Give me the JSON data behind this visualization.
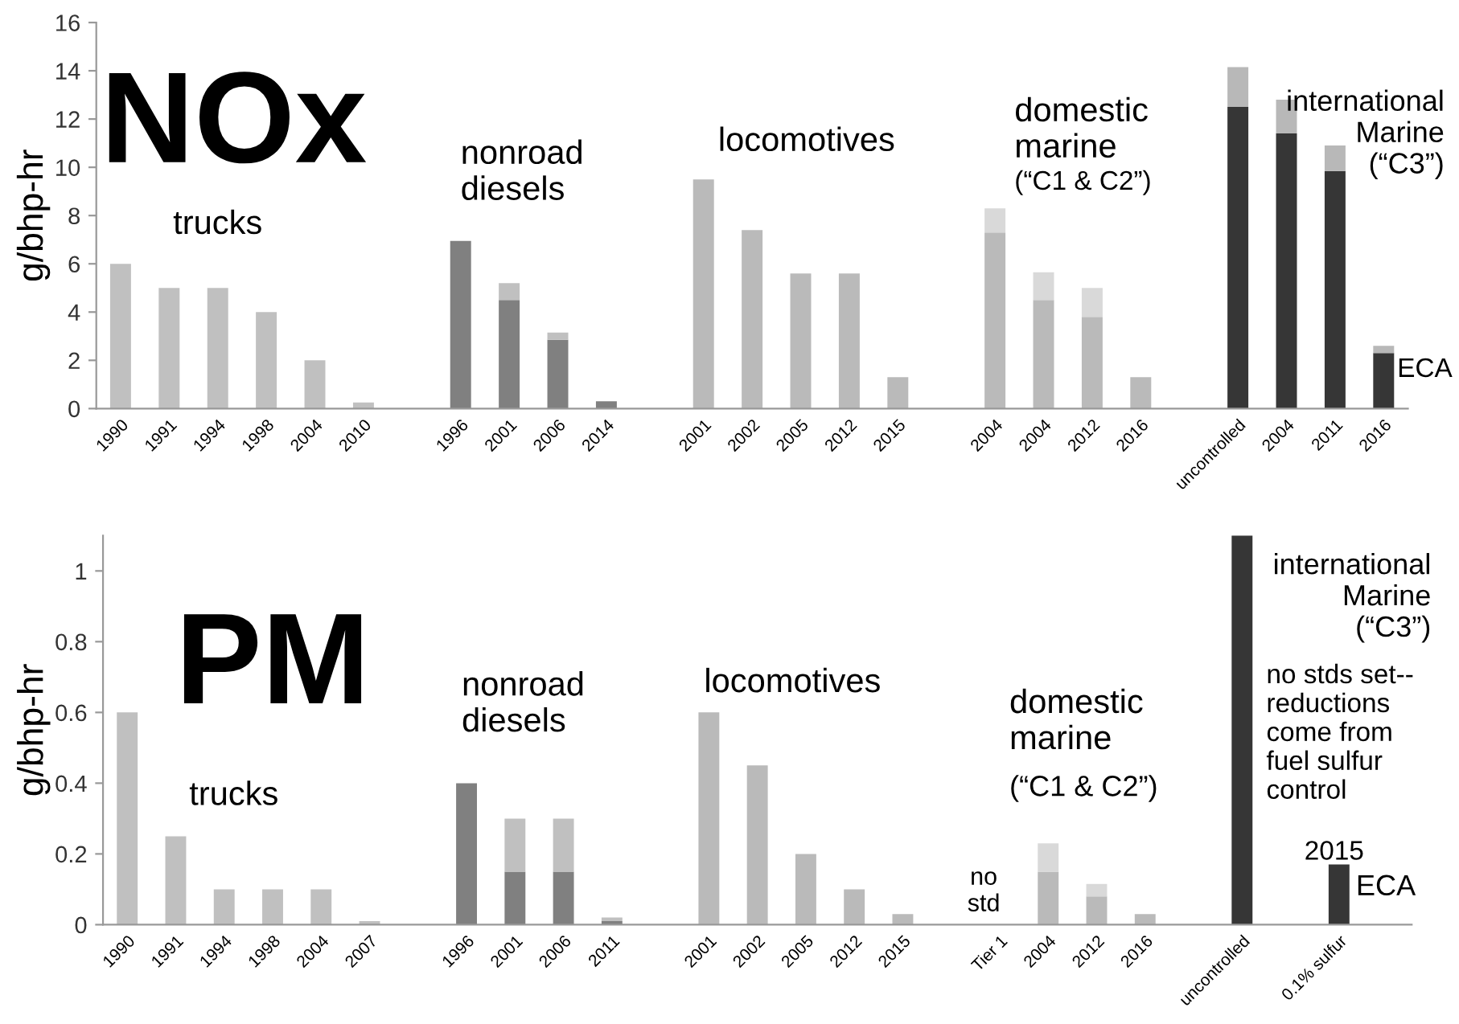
{
  "chart_data": [
    {
      "type": "bar",
      "title": "NOx",
      "ylabel": "g/bhp-hr",
      "stacked": true,
      "categories": [
        "1990",
        "1991",
        "1994",
        "1998",
        "2004",
        "2010",
        null,
        "1996",
        "2001",
        "2006",
        "2014",
        null,
        "2001",
        "2002",
        "2005",
        "2012",
        "2015",
        null,
        "2004",
        "2004",
        "2012",
        "2016",
        null,
        "uncontrolled",
        "2004",
        "2011",
        "2016"
      ],
      "series": [
        {
          "values": [
            6,
            5,
            5,
            4,
            2,
            0.25,
            null,
            6.95,
            4.5,
            2.85,
            0.3,
            null,
            9.5,
            7.4,
            5.6,
            5.6,
            1.3,
            null,
            7.3,
            4.5,
            3.8,
            1.3,
            null,
            12.5,
            11.4,
            9.85,
            2.3
          ],
          "colors": [
            "#c0c0c0",
            "#c0c0c0",
            "#c0c0c0",
            "#c0c0c0",
            "#c0c0c0",
            "#c0c0c0",
            null,
            "#808080",
            "#808080",
            "#808080",
            "#808080",
            null,
            "#bababa",
            "#bababa",
            "#bababa",
            "#bababa",
            "#bababa",
            null,
            "#bababa",
            "#bababa",
            "#bababa",
            "#bababa",
            null,
            "#363636",
            "#363636",
            "#363636",
            "#363636"
          ]
        },
        {
          "values": [
            null,
            null,
            null,
            null,
            null,
            null,
            null,
            null,
            0.7,
            0.3,
            null,
            null,
            null,
            null,
            null,
            null,
            null,
            null,
            1.0,
            1.15,
            1.2,
            null,
            null,
            1.65,
            1.4,
            1.05,
            0.3
          ],
          "colors": [
            null,
            null,
            null,
            null,
            null,
            null,
            null,
            null,
            "#c0c0c0",
            "#c0c0c0",
            null,
            null,
            null,
            null,
            null,
            null,
            null,
            null,
            "#d9d9d9",
            "#d9d9d9",
            "#d9d9d9",
            null,
            null,
            "#b8b8b8",
            "#b8b8b8",
            "#b8b8b8",
            "#b8b8b8"
          ]
        }
      ],
      "ylim": [
        0,
        16
      ],
      "yticks": [
        0,
        2,
        4,
        6,
        8,
        10,
        12,
        14,
        16
      ],
      "grid": false,
      "annotations": [
        "trucks",
        "nonroad\ndiesels",
        "locomotives",
        "domestic\nmarine",
        "(“C1 & C2”)",
        "international\nMarine\n(“C3”)",
        "ECA"
      ]
    },
    {
      "type": "bar",
      "title": "PM",
      "ylabel": "g/bhp-hr",
      "stacked": true,
      "categories": [
        "1990",
        "1991",
        "1994",
        "1998",
        "2004",
        "2007",
        null,
        "1996",
        "2001",
        "2006",
        "2011",
        null,
        "2001",
        "2002",
        "2005",
        "2012",
        "2015",
        null,
        "Tier 1",
        "2004",
        "2012",
        "2016",
        null,
        "uncontrolled",
        null,
        "0.1% sulfur",
        null
      ],
      "series": [
        {
          "values": [
            0.6,
            0.25,
            0.1,
            0.1,
            0.1,
            0.01,
            null,
            0.4,
            0.15,
            0.15,
            0.01,
            null,
            0.6,
            0.45,
            0.2,
            0.1,
            0.03,
            null,
            null,
            0.15,
            0.08,
            0.03,
            null,
            1.1,
            null,
            0.17,
            null
          ],
          "colors": [
            "#c0c0c0",
            "#c0c0c0",
            "#c0c0c0",
            "#c0c0c0",
            "#c0c0c0",
            "#c0c0c0",
            null,
            "#808080",
            "#808080",
            "#808080",
            "#808080",
            null,
            "#bababa",
            "#bababa",
            "#bababa",
            "#bababa",
            "#bababa",
            null,
            null,
            "#bababa",
            "#bababa",
            "#bababa",
            null,
            "#363636",
            null,
            "#363636",
            null
          ]
        },
        {
          "values": [
            null,
            null,
            null,
            null,
            null,
            null,
            null,
            null,
            0.15,
            0.15,
            0.01,
            null,
            null,
            null,
            null,
            null,
            null,
            null,
            null,
            0.08,
            0.035,
            null,
            null,
            null,
            null,
            null,
            null
          ],
          "colors": [
            null,
            null,
            null,
            null,
            null,
            null,
            null,
            null,
            "#c0c0c0",
            "#c0c0c0",
            "#c0c0c0",
            null,
            null,
            null,
            null,
            null,
            null,
            null,
            null,
            "#d9d9d9",
            "#d9d9d9",
            null,
            null,
            null,
            null,
            null,
            null
          ]
        }
      ],
      "ylim": [
        0,
        1.1
      ],
      "yticks": [
        0,
        0.2,
        0.4,
        0.6,
        0.8,
        1
      ],
      "grid": false,
      "annotations": [
        "trucks",
        "nonroad\ndiesels",
        "locomotives",
        "domestic\nmarine",
        "(“C1 & C2”)",
        "no\nstd",
        "international\nMarine\n(“C3”)",
        "no stds set--\nreductions\ncome from\nfuel sulfur\ncontrol",
        "2015",
        "ECA"
      ]
    }
  ]
}
